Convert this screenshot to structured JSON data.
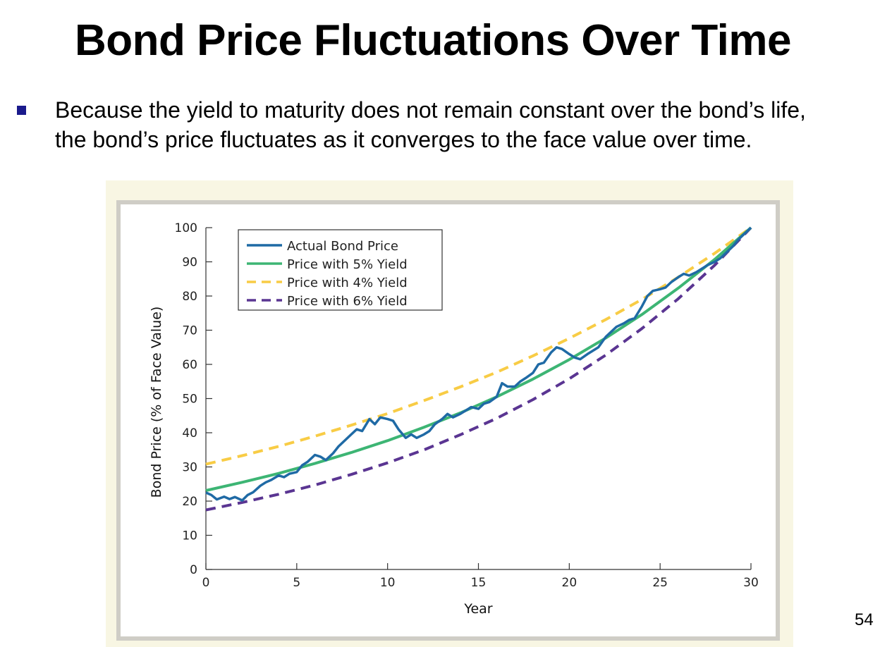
{
  "slide": {
    "title": "Bond Price Fluctuations Over Time",
    "bullet": "Because the yield to maturity does not remain constant over the bond’s life, the bond’s price fluctuates as it converges to the face value over time.",
    "page_number": "54",
    "bullet_color": "#1a1a8c"
  },
  "chart_data": {
    "type": "line",
    "xlabel": "Year",
    "ylabel": "Bond Price (% of Face Value)",
    "xlim": [
      0,
      30
    ],
    "ylim": [
      0,
      100
    ],
    "x_ticks": [
      0,
      5,
      10,
      15,
      20,
      25,
      30
    ],
    "y_ticks": [
      0,
      10,
      20,
      30,
      40,
      50,
      60,
      70,
      80,
      90,
      100
    ],
    "grid": false,
    "legend_position": "top-left",
    "series": [
      {
        "name": "Actual Bond Price",
        "color": "#1f6aa5",
        "style": "solid",
        "x": [
          0,
          0.3,
          0.6,
          1.0,
          1.3,
          1.6,
          2.0,
          2.3,
          2.6,
          3.0,
          3.3,
          3.6,
          4.0,
          4.3,
          4.6,
          5.0,
          5.3,
          5.6,
          6.0,
          6.3,
          6.6,
          7.0,
          7.3,
          7.6,
          8.0,
          8.3,
          8.6,
          9.0,
          9.3,
          9.6,
          10.0,
          10.3,
          10.6,
          11.0,
          11.3,
          11.6,
          12.0,
          12.3,
          12.6,
          13.0,
          13.3,
          13.6,
          14.0,
          14.3,
          14.6,
          15.0,
          15.3,
          15.6,
          16.0,
          16.3,
          16.6,
          17.0,
          17.3,
          17.6,
          18.0,
          18.3,
          18.6,
          19.0,
          19.3,
          19.6,
          20.0,
          20.3,
          20.6,
          21.0,
          21.3,
          21.6,
          22.0,
          22.3,
          22.6,
          23.0,
          23.3,
          23.6,
          24.0,
          24.3,
          24.6,
          25.0,
          25.3,
          25.6,
          26.0,
          26.3,
          26.6,
          27.0,
          27.3,
          27.6,
          28.0,
          28.3,
          28.6,
          29.0,
          29.3,
          29.6,
          30.0
        ],
        "values": [
          22.5,
          21.8,
          20.5,
          21.3,
          20.6,
          21.2,
          20.2,
          21.8,
          22.6,
          24.5,
          25.5,
          26.2,
          27.5,
          27.0,
          28.0,
          28.5,
          30.5,
          31.5,
          33.5,
          33.0,
          32.0,
          34.0,
          36.0,
          37.5,
          39.5,
          41.0,
          40.5,
          44.0,
          42.5,
          44.5,
          44.0,
          43.5,
          41.0,
          38.5,
          39.5,
          38.5,
          39.5,
          40.5,
          42.5,
          44.0,
          45.5,
          44.5,
          45.5,
          46.5,
          47.5,
          47.0,
          48.5,
          49.0,
          50.5,
          54.5,
          53.5,
          53.5,
          55.0,
          56.0,
          57.5,
          60.0,
          60.5,
          63.5,
          65.0,
          64.5,
          63.0,
          62.0,
          61.5,
          63.0,
          64.0,
          65.0,
          68.0,
          69.5,
          71.0,
          72.0,
          73.0,
          73.5,
          77.0,
          80.0,
          81.5,
          82.0,
          82.5,
          84.0,
          85.5,
          86.5,
          86.0,
          87.0,
          88.0,
          89.0,
          90.0,
          91.0,
          92.5,
          94.5,
          96.5,
          98.0,
          100
        ]
      },
      {
        "name": "Price with 5% Yield",
        "color": "#3db574",
        "style": "solid",
        "x": [
          0,
          2,
          4,
          6,
          8,
          10,
          12,
          14,
          16,
          18,
          20,
          22,
          24,
          26,
          28,
          30
        ],
        "values": [
          23.1,
          25.5,
          28.1,
          31.0,
          34.2,
          37.7,
          41.6,
          45.8,
          50.5,
          55.7,
          61.4,
          67.7,
          74.6,
          82.3,
          90.7,
          100
        ]
      },
      {
        "name": "Price with 4% Yield",
        "color": "#f8cc45",
        "style": "dashed",
        "x": [
          0,
          2,
          4,
          6,
          8,
          10,
          12,
          14,
          16,
          18,
          20,
          22,
          24,
          26,
          28,
          30
        ],
        "values": [
          30.8,
          33.3,
          36.0,
          39.0,
          42.2,
          45.6,
          49.4,
          53.4,
          57.7,
          62.5,
          67.6,
          73.1,
          79.0,
          85.5,
          92.5,
          100
        ]
      },
      {
        "name": "Price with 6% Yield",
        "color": "#5a3592",
        "style": "dashed",
        "x": [
          0,
          2,
          4,
          6,
          8,
          10,
          12,
          14,
          16,
          18,
          20,
          22,
          24,
          26,
          28,
          30
        ],
        "values": [
          17.4,
          19.6,
          22.0,
          24.7,
          27.8,
          31.2,
          35.0,
          39.4,
          44.2,
          49.7,
          55.8,
          62.7,
          70.5,
          79.2,
          89.0,
          100
        ]
      }
    ]
  }
}
